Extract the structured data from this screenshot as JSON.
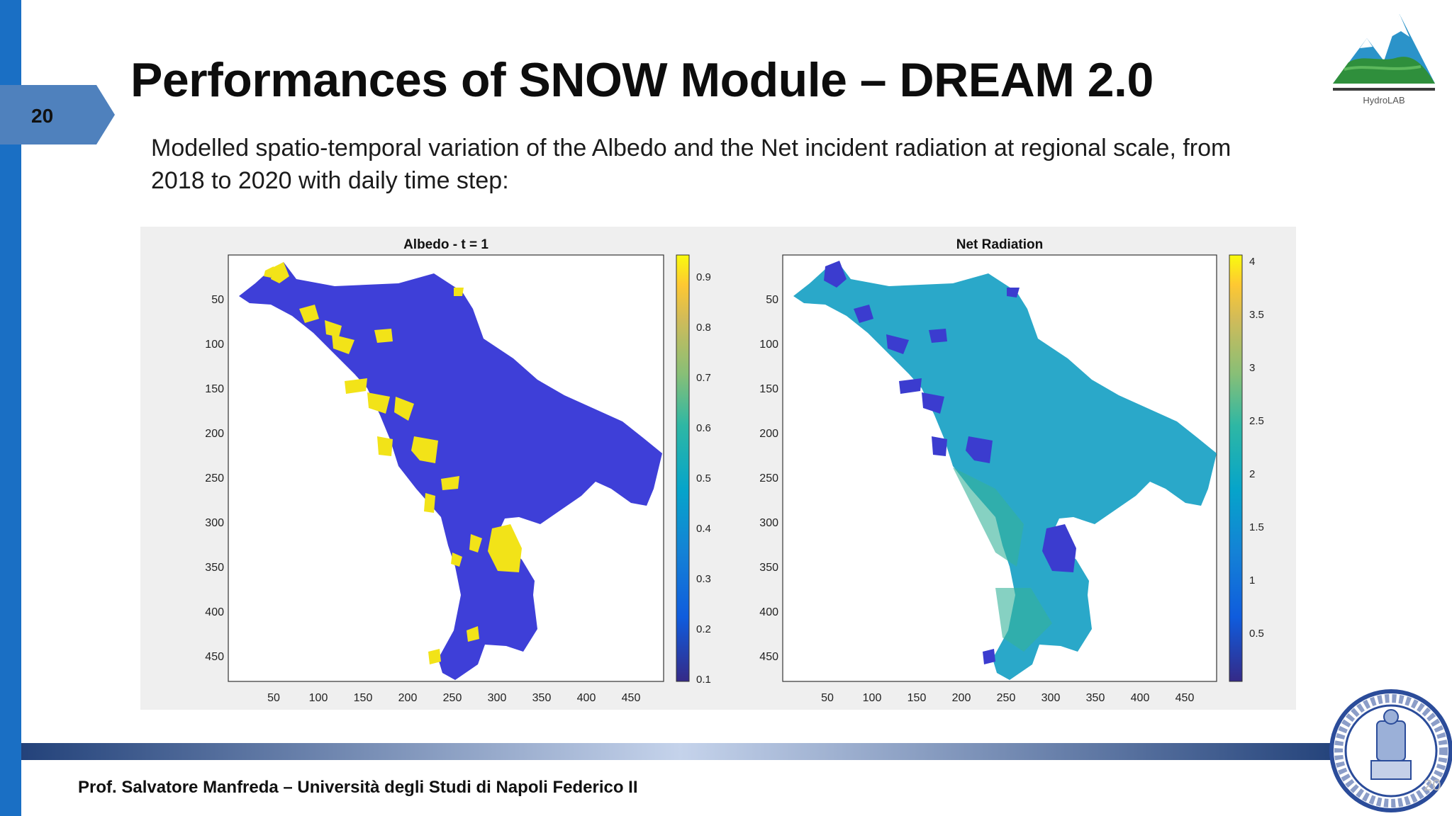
{
  "slide": {
    "number": "20",
    "title": "Performances of SNOW Module – DREAM 2.0",
    "subtitle": "Modelled spatio-temporal variation of the Albedo and the Net incident radiation at regional scale, from 2018 to 2020 with daily time step:",
    "footer": "Prof. Salvatore Manfreda – Università degli Studi di Napoli Federico II",
    "page_marker": "20"
  },
  "logo": {
    "label": "HydroLAB",
    "icon": "mountain-logo-icon"
  },
  "seal": {
    "icon": "university-seal-icon"
  },
  "colors": {
    "accent_blue": "#1a6fc4",
    "tab_blue": "#4f81bd",
    "albedo_low": "#3f3fd6",
    "snow_yellow": "#f5e11a",
    "radiation_base": "#2ba8c8"
  },
  "chart_data": [
    {
      "type": "heatmap",
      "title": "Albedo - t = 1",
      "x_ticks": [
        "50",
        "100",
        "150",
        "200",
        "250",
        "300",
        "350",
        "400",
        "450"
      ],
      "y_ticks": [
        "50",
        "100",
        "150",
        "200",
        "250",
        "300",
        "350",
        "400",
        "450"
      ],
      "xlim": [
        0,
        480
      ],
      "ylim": [
        0,
        480
      ],
      "colorbar": {
        "min": 0.1,
        "max": 0.95,
        "ticks": [
          "0.9",
          "0.8",
          "0.7",
          "0.6",
          "0.5",
          "0.4",
          "0.3",
          "0.2",
          "0.1"
        ],
        "tick_values": [
          0.9,
          0.8,
          0.7,
          0.6,
          0.5,
          0.4,
          0.3,
          0.2,
          0.1
        ],
        "colormap": "parula"
      }
    },
    {
      "type": "heatmap",
      "title": "Net Radiation",
      "x_ticks": [
        "50",
        "100",
        "150",
        "200",
        "250",
        "300",
        "350",
        "400",
        "450"
      ],
      "y_ticks": [
        "50",
        "100",
        "150",
        "200",
        "250",
        "300",
        "350",
        "400",
        "450"
      ],
      "xlim": [
        0,
        480
      ],
      "ylim": [
        0,
        480
      ],
      "colorbar": {
        "min": 0,
        "max": 4.1,
        "ticks": [
          "4",
          "3.5",
          "3",
          "2.5",
          "2",
          "1.5",
          "1",
          "0.5"
        ],
        "tick_values": [
          4,
          3.5,
          3,
          2.5,
          2,
          1.5,
          1,
          0.5
        ],
        "colormap": "parula"
      }
    }
  ]
}
